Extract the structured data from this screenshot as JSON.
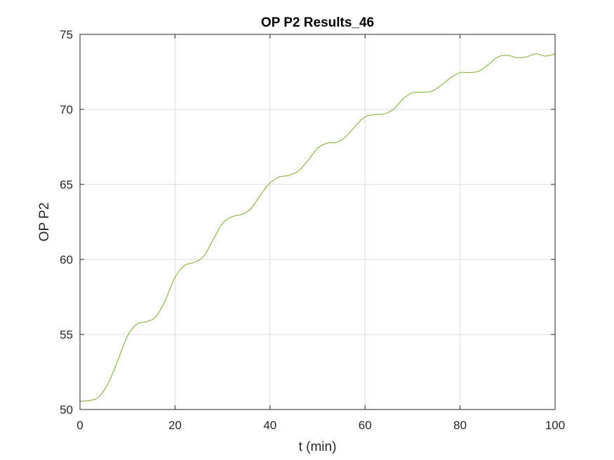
{
  "chart_data": {
    "type": "line",
    "title": "OP P2 Results_46",
    "xlabel": "t (min)",
    "ylabel": "OP P2",
    "xlim": [
      0,
      100
    ],
    "ylim": [
      50,
      75
    ],
    "xticks": [
      0,
      20,
      40,
      60,
      80,
      100
    ],
    "yticks": [
      50,
      55,
      60,
      65,
      70,
      75
    ],
    "xtick_labels": [
      "0",
      "20",
      "40",
      "60",
      "80",
      "100"
    ],
    "ytick_labels": [
      "50",
      "55",
      "60",
      "65",
      "70",
      "75"
    ],
    "grid": true,
    "legend": false,
    "series": [
      {
        "color": "#77ac30",
        "x": [
          0,
          2,
          4,
          6,
          8,
          10,
          12,
          14,
          16,
          18,
          20,
          22,
          24,
          26,
          28,
          30,
          32,
          34,
          36,
          38,
          40,
          42,
          44,
          46,
          48,
          50,
          52,
          54,
          56,
          58,
          60,
          62,
          64,
          66,
          68,
          70,
          72,
          74,
          76,
          78,
          80,
          82,
          84,
          86,
          88,
          90,
          92,
          94,
          96,
          98,
          100
        ],
        "y": [
          50.55,
          50.6,
          50.85,
          51.8,
          53.3,
          54.9,
          55.7,
          55.85,
          56.2,
          57.3,
          58.8,
          59.6,
          59.8,
          60.2,
          61.3,
          62.4,
          62.85,
          63.0,
          63.4,
          64.3,
          65.1,
          65.5,
          65.6,
          65.9,
          66.6,
          67.4,
          67.75,
          67.8,
          68.2,
          68.9,
          69.5,
          69.65,
          69.7,
          70.0,
          70.7,
          71.1,
          71.15,
          71.2,
          71.6,
          72.1,
          72.45,
          72.45,
          72.55,
          73.0,
          73.5,
          73.6,
          73.45,
          73.5,
          73.7,
          73.55,
          73.7
        ]
      }
    ]
  }
}
